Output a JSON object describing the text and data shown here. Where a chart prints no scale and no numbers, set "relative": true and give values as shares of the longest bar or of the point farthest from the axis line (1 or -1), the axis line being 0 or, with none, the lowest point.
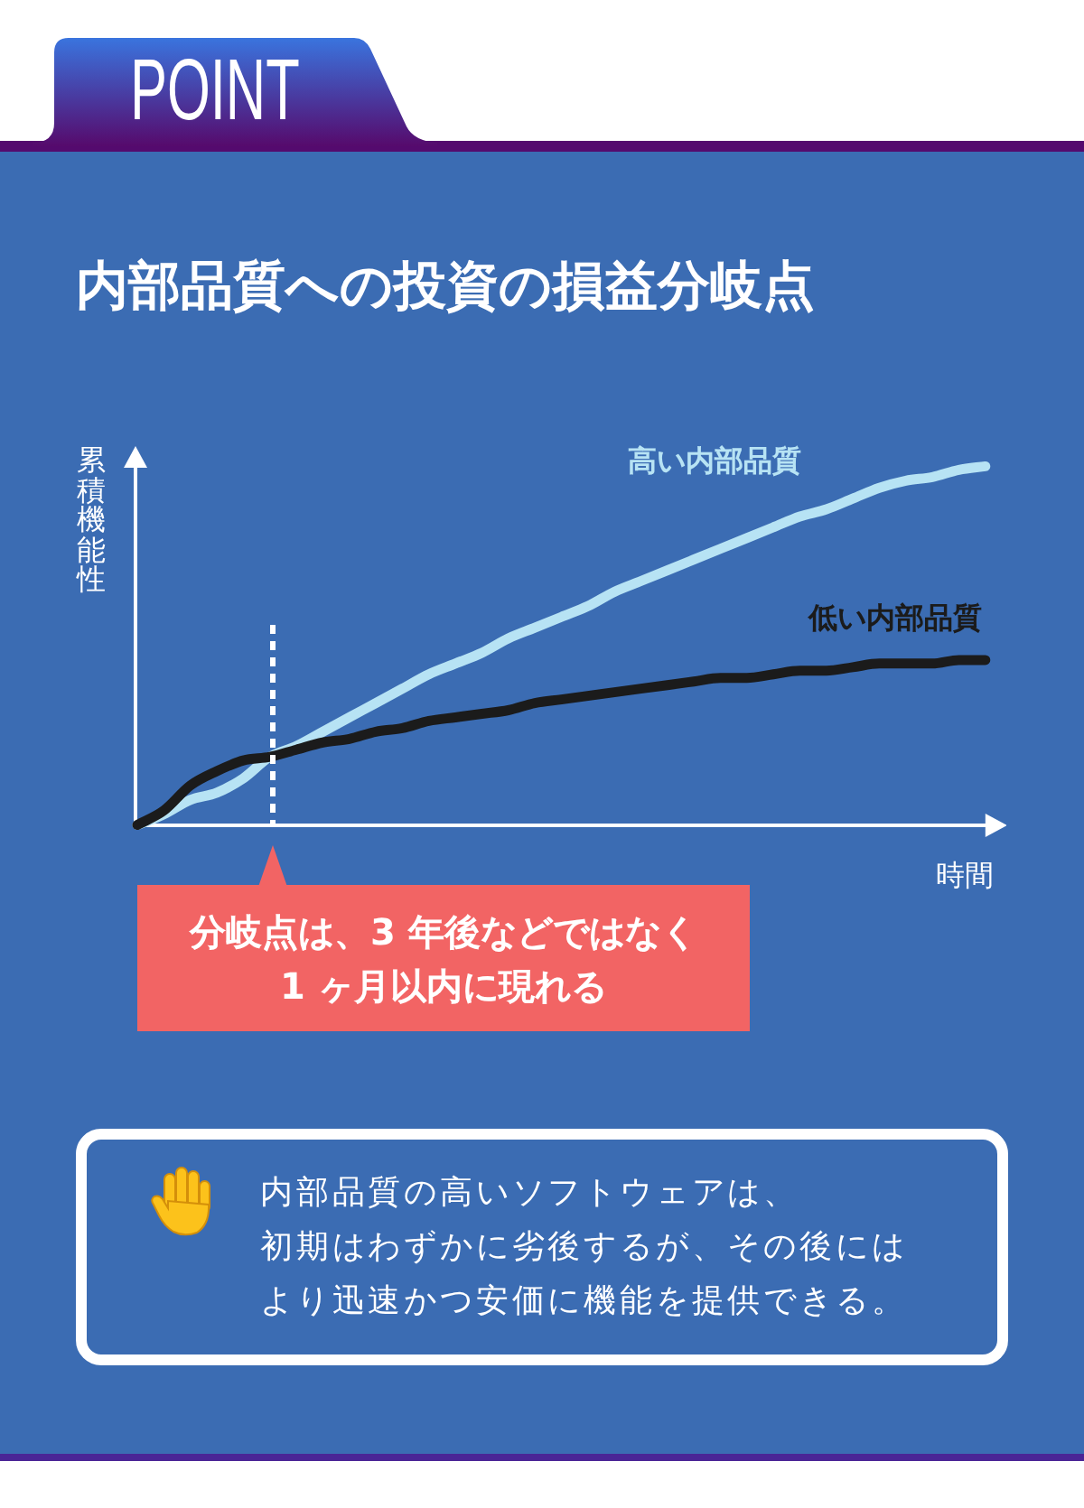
{
  "chart_data": {
    "type": "line",
    "title": "内部品質への投資の損益分岐点",
    "xlabel": "時間",
    "ylabel": "累積機能性",
    "relative": true,
    "categories": [
      null,
      null,
      null,
      null,
      null,
      null,
      null,
      null,
      null,
      null,
      null,
      null,
      null,
      null,
      null,
      null,
      null,
      null,
      null,
      null,
      null,
      null,
      null,
      null,
      null,
      null,
      null,
      null,
      null,
      null,
      null,
      null,
      null
    ],
    "series": [
      {
        "name": "高い内部品質",
        "color": "#b7e3f4",
        "values": [
          0,
          0.03,
          0.07,
          0.09,
          0.13,
          0.19,
          0.22,
          0.26,
          0.3,
          0.34,
          0.38,
          0.42,
          0.45,
          0.48,
          0.52,
          0.55,
          0.58,
          0.61,
          0.65,
          0.68,
          0.71,
          0.74,
          0.77,
          0.8,
          0.83,
          0.86,
          0.88,
          0.91,
          0.94,
          0.96,
          0.97,
          0.99,
          1
        ]
      },
      {
        "name": "低い内部品質",
        "color": "#1b1b1b",
        "values": [
          0,
          0.04,
          0.11,
          0.15,
          0.18,
          0.19,
          0.21,
          0.23,
          0.24,
          0.26,
          0.27,
          0.29,
          0.3,
          0.31,
          0.32,
          0.34,
          0.35,
          0.36,
          0.37,
          0.38,
          0.39,
          0.4,
          0.41,
          0.41,
          0.42,
          0.43,
          0.43,
          0.44,
          0.45,
          0.45,
          0.45,
          0.46,
          0.46
        ]
      }
    ],
    "annotations": [
      "POINT",
      "分岐点は、3 年後などではなく1 ヶ月以内に現れる",
      "内部品質の高いソフトウェアは、初期はわずかに劣後するが、その後にはより迅速かつ安価に機能を提供できる。"
    ]
  }
}
